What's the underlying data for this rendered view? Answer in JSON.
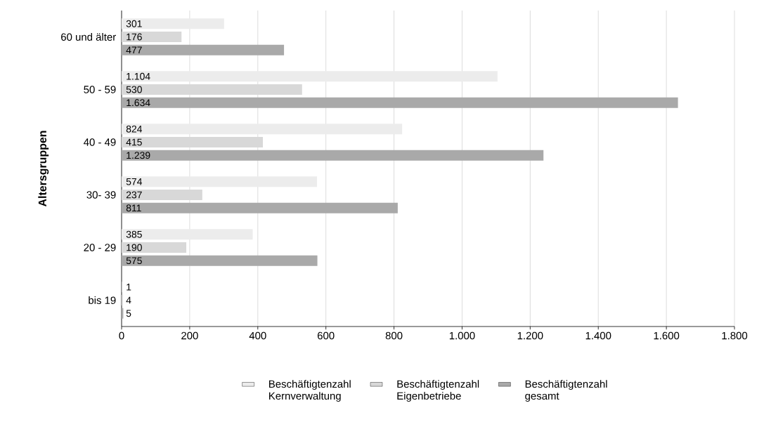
{
  "chart_data": {
    "type": "bar",
    "orientation": "horizontal",
    "ylabel": "Altersgruppen",
    "categories": [
      "60 und älter",
      "50 - 59",
      "40 - 49",
      "30- 39",
      "20 - 29",
      "bis 19"
    ],
    "series": [
      {
        "name": "Beschäftigtenzahl Kernverwaltung",
        "color": "#ececec",
        "values": [
          301,
          1104,
          824,
          574,
          385,
          1
        ],
        "value_labels": [
          "301",
          "1.104",
          "824",
          "574",
          "385",
          "1"
        ]
      },
      {
        "name": "Beschäftigtenzahl Eigenbetriebe",
        "color": "#d8d8d8",
        "values": [
          176,
          530,
          415,
          237,
          190,
          4
        ],
        "value_labels": [
          "176",
          "530",
          "415",
          "237",
          "190",
          "4"
        ]
      },
      {
        "name": "Beschäftigtenzahl gesamt",
        "color": "#a9a9a9",
        "values": [
          477,
          1634,
          1239,
          811,
          575,
          5
        ],
        "value_labels": [
          "477",
          "1.634",
          "1.239",
          "811",
          "575",
          "5"
        ]
      }
    ],
    "xlim": [
      0,
      1800
    ],
    "xticks": [
      0,
      200,
      400,
      600,
      800,
      {
        "value": 1000,
        "label": "1.000"
      },
      {
        "value": 1200,
        "label": "1.200"
      },
      {
        "value": 1400,
        "label": "1.400"
      },
      {
        "value": 1600,
        "label": "1.600"
      },
      {
        "value": 1800,
        "label": "1.800"
      }
    ],
    "grid": "x",
    "legend": "bottom"
  }
}
